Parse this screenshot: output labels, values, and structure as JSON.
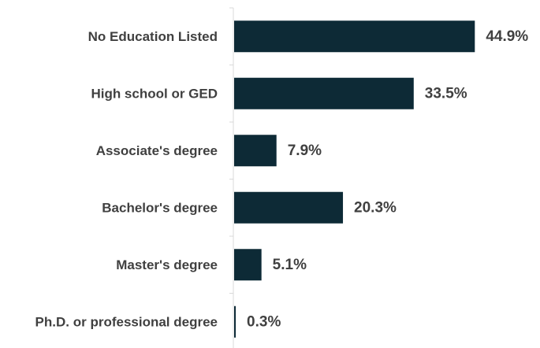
{
  "chart_data": {
    "type": "bar",
    "orientation": "horizontal",
    "categories": [
      "No Education Listed",
      "High school or GED",
      "Associate's degree",
      "Bachelor's degree",
      "Master's degree",
      "Ph.D. or professional degree"
    ],
    "values": [
      44.9,
      33.5,
      7.9,
      20.3,
      5.1,
      0.3
    ],
    "value_labels": [
      "44.9%",
      "33.5%",
      "7.9%",
      "20.3%",
      "5.1%",
      "0.3%"
    ],
    "unit": "%",
    "xlim": [
      0,
      50
    ],
    "title": "",
    "xlabel": "",
    "ylabel": "",
    "grid": false,
    "legend": "none",
    "bar_color": "#0d2a36",
    "axis_color": "#d9d9d9",
    "text_color": "#404040"
  }
}
